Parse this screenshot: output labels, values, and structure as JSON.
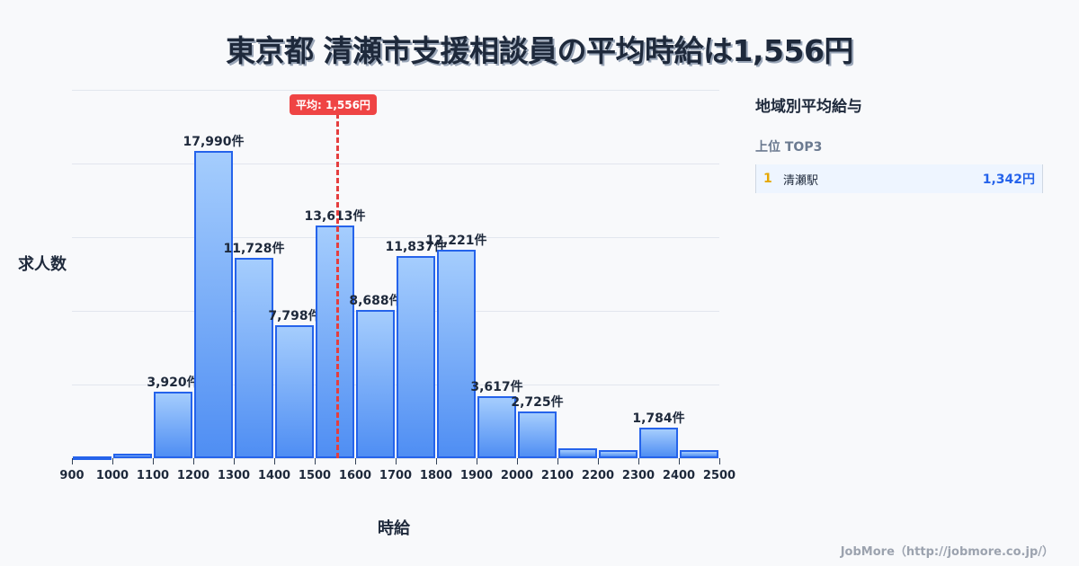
{
  "title": "東京都 清瀬市支援相談員の平均時給は1,556円",
  "chart_data": {
    "type": "bar",
    "title": "東京都 清瀬市支援相談員の平均時給は1,556円",
    "xlabel": "時給",
    "ylabel": "求人数",
    "bins": [
      900,
      1000,
      1100,
      1200,
      1300,
      1400,
      1500,
      1600,
      1700,
      1800,
      1900,
      2000,
      2100,
      2200,
      2300,
      2400,
      2500
    ],
    "categories": [
      "900-1000",
      "1000-1100",
      "1100-1200",
      "1200-1300",
      "1300-1400",
      "1400-1500",
      "1500-1600",
      "1600-1700",
      "1700-1800",
      "1800-1900",
      "1900-2000",
      "2000-2100",
      "2100-2200",
      "2200-2300",
      "2300-2400",
      "2400-2500"
    ],
    "values": [
      50,
      250,
      3920,
      17990,
      11728,
      7798,
      13613,
      8688,
      11837,
      12221,
      3617,
      2725,
      570,
      460,
      1784,
      460
    ],
    "labels": [
      "",
      "",
      "3,920件",
      "17,990件",
      "11,728件",
      "7,798件",
      "13,613件",
      "8,688件",
      "11,837件",
      "12,221件",
      "3,617件",
      "2,725件",
      "",
      "",
      "1,784件",
      ""
    ],
    "ylim": [
      0,
      21588
    ],
    "grid": true,
    "average": {
      "value": 1556,
      "label": "平均: 1,556円"
    }
  },
  "sidebar": {
    "title": "地域別平均給与",
    "subtitle": "上位 TOP3",
    "ranks": [
      {
        "rank": "1",
        "name": "清瀬駅",
        "value": "1,342円"
      }
    ]
  },
  "footer": "JobMore（http://jobmore.co.jp/）"
}
